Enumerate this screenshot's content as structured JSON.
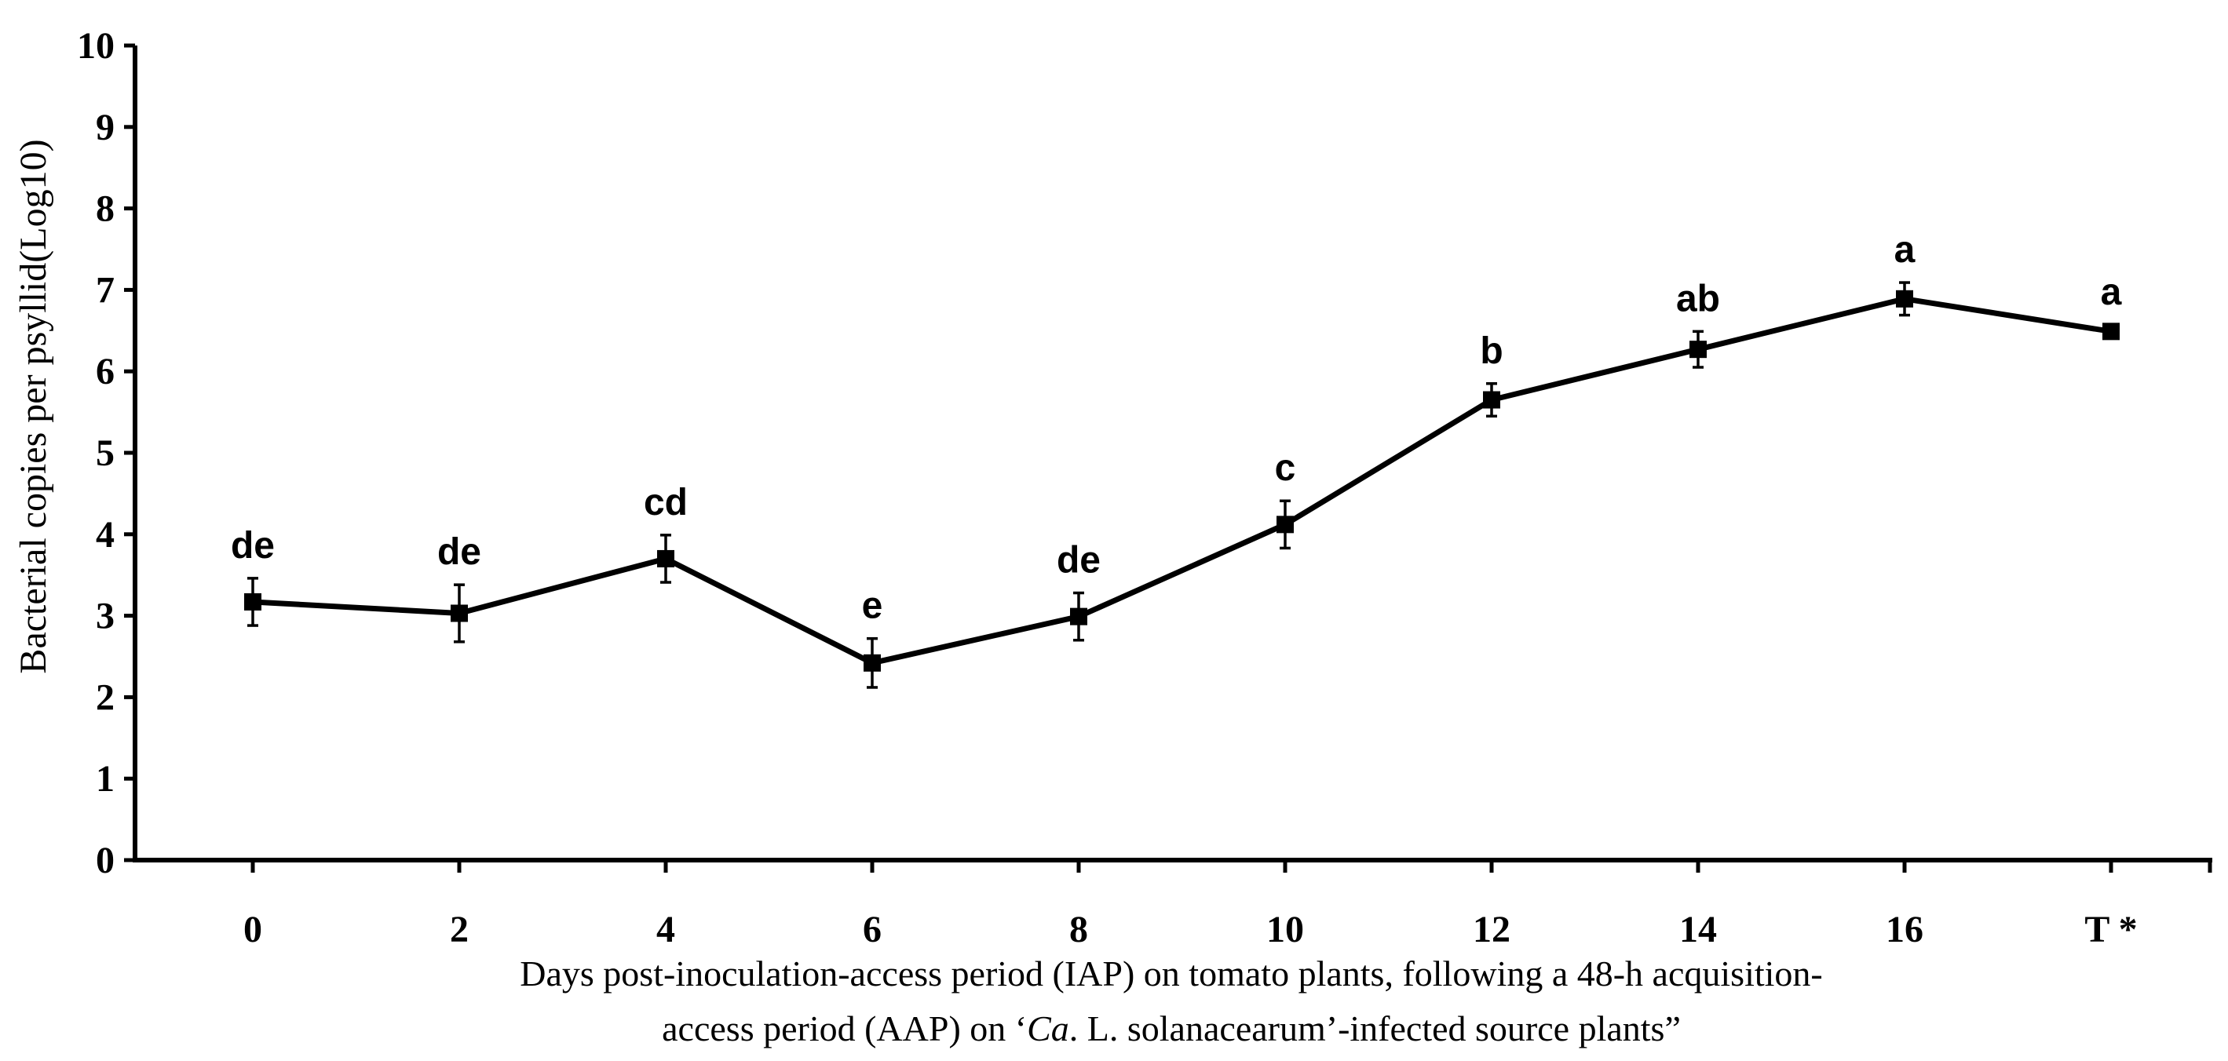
{
  "chart_data": {
    "type": "line",
    "ylabel": "Bacterial copies per psyllid(Log10)",
    "xlabel_line1": "Days post-inoculation-access period (IAP) on tomato plants, following a 48-h acquisition-",
    "xlabel_line2_pre": "access period (AAP) on ‘",
    "xlabel_line2_italic": "Ca",
    "xlabel_line2_post": ". L. solanacearum’-infected source plants”",
    "ylim": [
      0,
      10
    ],
    "yticks": [
      "0",
      "1",
      "2",
      "3",
      "4",
      "5",
      "6",
      "7",
      "8",
      "9",
      "10"
    ],
    "categories": [
      "0",
      "2",
      "4",
      "6",
      "8",
      "10",
      "12",
      "14",
      "16",
      "T *"
    ],
    "series": [
      {
        "name": "Bacterial copies",
        "values": [
          3.17,
          3.03,
          3.7,
          2.42,
          2.99,
          4.12,
          5.65,
          6.27,
          6.89,
          6.49
        ],
        "errors": [
          0.29,
          0.35,
          0.29,
          0.3,
          0.29,
          0.29,
          0.2,
          0.22,
          0.2,
          0.08
        ]
      }
    ],
    "significance_labels": [
      "de",
      "de",
      "cd",
      "e",
      "de",
      "c",
      "b",
      "ab",
      "a",
      "a"
    ],
    "grid": false,
    "legend": "none"
  }
}
